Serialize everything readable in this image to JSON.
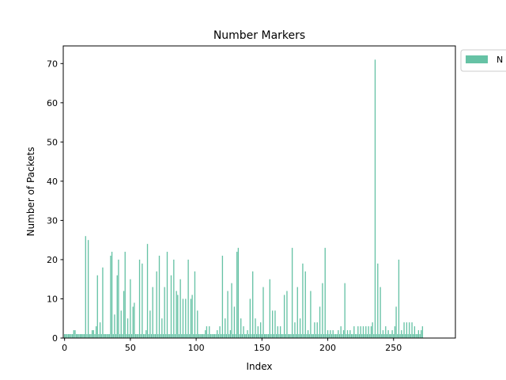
{
  "chart_data": {
    "type": "bar",
    "title": "Number Markers",
    "xlabel": "Index",
    "ylabel": "Number of Packets",
    "xlim": [
      -1,
      297
    ],
    "ylim": [
      0,
      74.5
    ],
    "xticks": [
      0,
      50,
      100,
      150,
      200,
      250
    ],
    "yticks": [
      0,
      10,
      20,
      30,
      40,
      50,
      60,
      70
    ],
    "grid": false,
    "legend": {
      "placement": "outside-top-right",
      "entries": [
        "N"
      ]
    },
    "colors": {
      "bar": "#66c2a5",
      "axes": "#000000",
      "background": "#ffffff"
    },
    "series": [
      {
        "name": "N",
        "values": [
          1,
          1,
          1,
          1,
          1,
          1,
          1,
          2,
          2,
          1,
          1,
          1,
          1,
          1,
          1,
          1,
          26,
          1,
          25,
          1,
          1,
          2,
          2,
          1,
          3,
          16,
          1,
          4,
          1,
          18,
          1,
          1,
          1,
          1,
          1,
          21,
          22,
          1,
          6,
          1,
          16,
          20,
          1,
          7,
          1,
          12,
          22,
          1,
          5,
          1,
          15,
          1,
          8,
          9,
          1,
          1,
          1,
          20,
          1,
          19,
          1,
          1,
          2,
          24,
          1,
          7,
          1,
          13,
          1,
          1,
          17,
          1,
          21,
          1,
          5,
          1,
          13,
          1,
          22,
          1,
          1,
          16,
          1,
          20,
          1,
          12,
          11,
          1,
          15,
          1,
          10,
          1,
          10,
          1,
          20,
          1,
          10,
          11,
          1,
          17,
          1,
          7,
          1,
          1,
          1,
          1,
          1,
          2,
          3,
          1,
          3,
          1,
          1,
          1,
          1,
          1,
          2,
          1,
          3,
          1,
          21,
          1,
          5,
          1,
          12,
          1,
          2,
          14,
          1,
          8,
          1,
          22,
          23,
          1,
          5,
          1,
          3,
          1,
          1,
          2,
          1,
          10,
          1,
          17,
          1,
          5,
          1,
          3,
          1,
          4,
          1,
          13,
          1,
          1,
          1,
          1,
          15,
          1,
          7,
          1,
          7,
          1,
          3,
          1,
          3,
          1,
          1,
          11,
          1,
          12,
          1,
          1,
          1,
          23,
          1,
          4,
          1,
          13,
          1,
          5,
          1,
          19,
          1,
          17,
          1,
          2,
          1,
          12,
          1,
          1,
          4,
          1,
          4,
          1,
          8,
          1,
          14,
          1,
          23,
          1,
          2,
          1,
          2,
          1,
          2,
          1,
          1,
          1,
          2,
          1,
          3,
          1,
          2,
          14,
          1,
          2,
          1,
          2,
          1,
          1,
          3,
          1,
          1,
          3,
          1,
          3,
          1,
          3,
          1,
          3,
          1,
          3,
          1,
          3,
          4,
          1,
          71,
          1,
          19,
          1,
          13,
          1,
          2,
          1,
          3,
          1,
          2,
          1,
          1,
          2,
          1,
          3,
          8,
          1,
          20,
          1,
          2,
          1,
          4,
          1,
          4,
          1,
          4,
          1,
          4,
          1,
          3,
          1,
          1,
          2,
          1,
          2,
          3
        ]
      }
    ]
  }
}
